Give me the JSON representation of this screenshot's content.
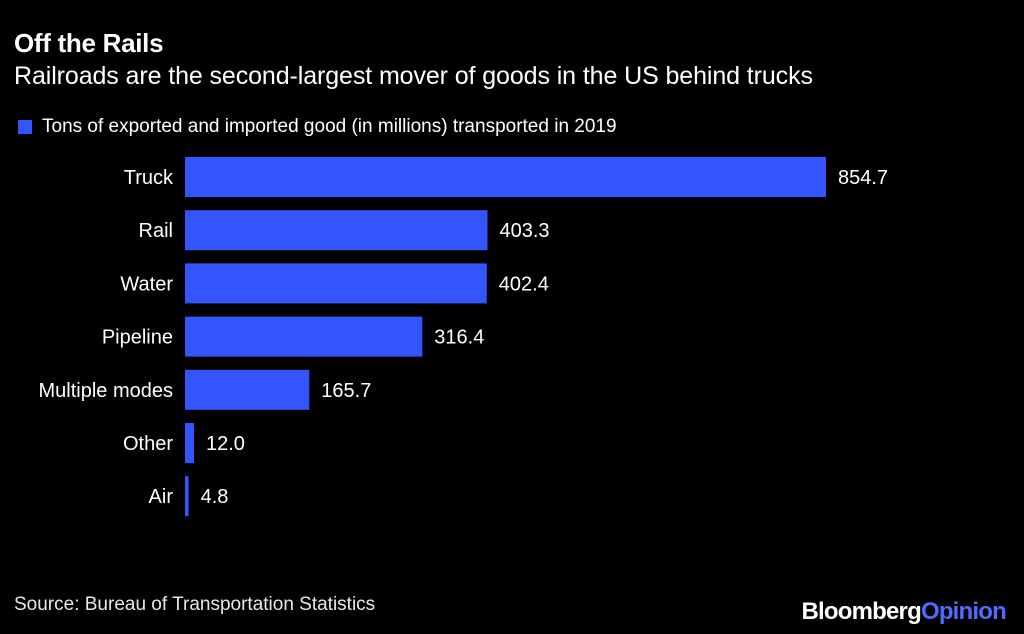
{
  "chart_data": {
    "type": "bar",
    "orientation": "horizontal",
    "title": "Off the Rails",
    "subtitle": "Railroads are the second-largest mover of goods in the US behind trucks",
    "categories": [
      "Truck",
      "Rail",
      "Water",
      "Pipeline",
      "Multiple modes",
      "Other",
      "Air"
    ],
    "series": [
      {
        "name": "Tons of exported and imported good (in millions) transported in 2019",
        "values": [
          854.7,
          403.3,
          402.4,
          316.4,
          165.7,
          12.0,
          4.8
        ],
        "labels": [
          "854.7",
          "403.3",
          "402.4",
          "316.4",
          "165.7",
          "12.0",
          "4.8"
        ]
      }
    ],
    "xlim": [
      0,
      854.7
    ],
    "grid": false,
    "legend_position": "top-left",
    "bar_color": "#3355ff"
  },
  "footer": {
    "source": "Source: Bureau of Transportation Statistics",
    "brand_primary": "Bloomberg",
    "brand_secondary": "Opinion"
  }
}
